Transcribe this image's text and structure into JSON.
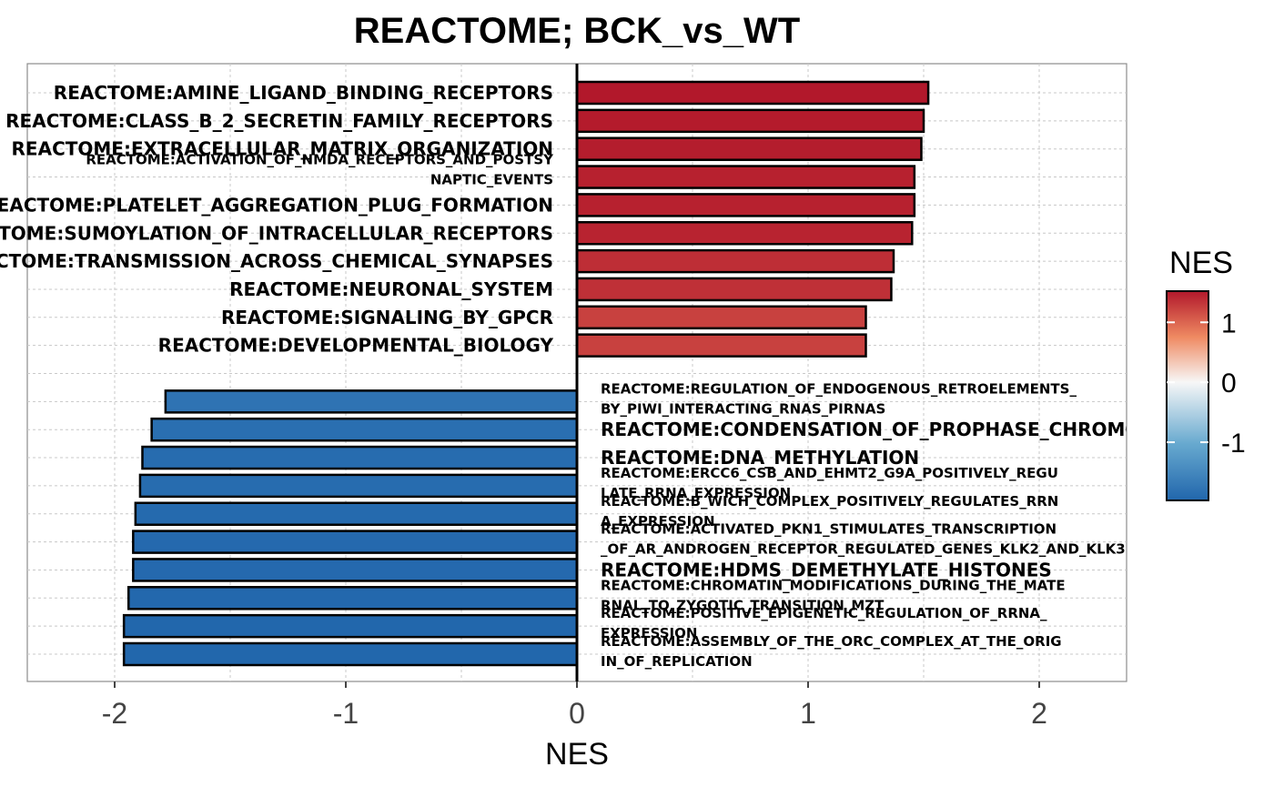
{
  "chart_data": {
    "type": "bar",
    "orientation": "horizontal",
    "title": "REACTOME; BCK_vs_WT",
    "xlabel": "NES",
    "ylabel": "",
    "xlim": [
      -2.4,
      2.4
    ],
    "x_ticks": [
      -2,
      -1,
      0,
      1,
      2
    ],
    "x_tick_labels": [
      "-2",
      "-1",
      "0",
      "1",
      "2"
    ],
    "grid": true,
    "legend": {
      "title": "NES",
      "position": "right",
      "type": "colorbar",
      "ticks": [
        1,
        0,
        -1
      ],
      "tick_labels": [
        "1",
        "0",
        "-1"
      ],
      "range": [
        -1.97,
        1.52
      ],
      "colors": {
        "high": "#b2182b",
        "mid_high": "#ef8a62",
        "mid": "#f7f7f7",
        "mid_low": "#67a9cf",
        "low": "#2166ac"
      }
    },
    "bars": [
      {
        "label": "REACTOME:AMINE_LIGAND_BINDING_RECEPTORS",
        "value": 1.52
      },
      {
        "label": "REACTOME:CLASS_B_2_SECRETIN_FAMILY_RECEPTORS",
        "value": 1.5
      },
      {
        "label": "REACTOME:EXTRACELLULAR_MATRIX_ORGANIZATION",
        "value": 1.49
      },
      {
        "label": "REACTOME:ACTIVATION_OF_NMDA_RECEPTORS_AND_POSTSYNAPTIC_EVENTS",
        "value": 1.46
      },
      {
        "label": "REACTOME:PLATELET_AGGREGATION_PLUG_FORMATION",
        "value": 1.46
      },
      {
        "label": "REACTOME:SUMOYLATION_OF_INTRACELLULAR_RECEPTORS",
        "value": 1.45
      },
      {
        "label": "REACTOME:TRANSMISSION_ACROSS_CHEMICAL_SYNAPSES",
        "value": 1.37
      },
      {
        "label": "REACTOME:NEURONAL_SYSTEM",
        "value": 1.36
      },
      {
        "label": "REACTOME:SIGNALING_BY_GPCR",
        "value": 1.25
      },
      {
        "label": "REACTOME:DEVELOPMENTAL_BIOLOGY",
        "value": 1.25
      },
      {
        "label": "REACTOME:REGULATION_OF_ENDOGENOUS_RETROELEMENTS_BY_PIWI_INTERACTING_RNAS_PIRNAS",
        "value": -1.78
      },
      {
        "label": "REACTOME:CONDENSATION_OF_PROPHASE_CHROMOSOMES",
        "value": -1.84
      },
      {
        "label": "REACTOME:DNA_METHYLATION",
        "value": -1.88
      },
      {
        "label": "REACTOME:ERCC6_CSB_AND_EHMT2_G9A_POSITIVELY_REGULATE_RRNA_EXPRESSION",
        "value": -1.89
      },
      {
        "label": "REACTOME:B_WICH_COMPLEX_POSITIVELY_REGULATES_RRNA_EXPRESSION",
        "value": -1.91
      },
      {
        "label": "REACTOME:ACTIVATED_PKN1_STIMULATES_TRANSCRIPTION_OF_AR_ANDROGEN_RECEPTOR_REGULATED_GENES_KLK2_AND_KLK3",
        "value": -1.92
      },
      {
        "label": "REACTOME:HDMS_DEMETHYLATE_HISTONES",
        "value": -1.92
      },
      {
        "label": "REACTOME:CHROMATIN_MODIFICATIONS_DURING_THE_MATERNAL_TO_ZYGOTIC_TRANSITION_MZT",
        "value": -1.94
      },
      {
        "label": "REACTOME:POSITIVE_EPIGENETIC_REGULATION_OF_RRNA_EXPRESSION",
        "value": -1.96
      },
      {
        "label": "REACTOME:ASSEMBLY_OF_THE_ORC_COMPLEX_AT_THE_ORIGIN_OF_REPLICATION",
        "value": -1.96
      }
    ]
  }
}
